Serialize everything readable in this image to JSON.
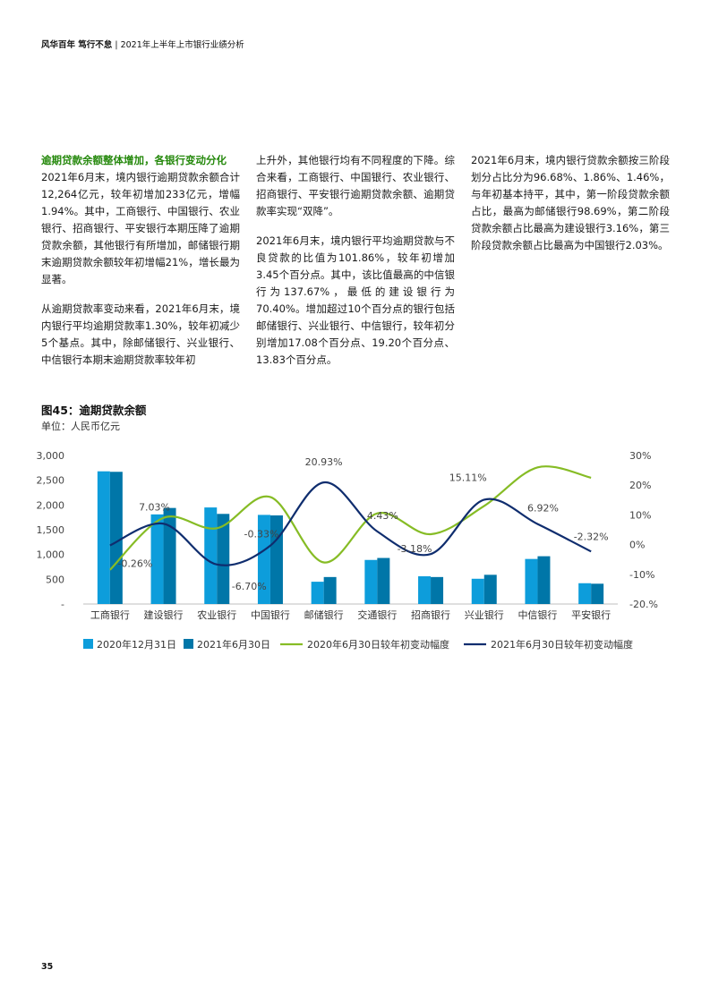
{
  "header": {
    "brand": "风华百年 笃行不怠",
    "separator": "|",
    "report_title": "2021年上半年上市银行业绩分析"
  },
  "column1": {
    "heading": "逾期贷款余额整体增加，各银行变动分化",
    "para1": "2021年6月末，境内银行逾期贷款余额合计12,264亿元，较年初增加233亿元，增幅1.94%。其中，工商银行、中国银行、农业银行、招商银行、平安银行本期压降了逾期贷款余额，其他银行有所增加，邮储银行期末逾期贷款余额较年初增幅21%，增长最为显著。",
    "para2": "从逾期贷款率变动来看，2021年6月末，境内银行平均逾期贷款率1.30%，较年初减少5个基点。其中，除邮储银行、兴业银行、中信银行本期末逾期贷款率较年初"
  },
  "column2": {
    "para1": "上升外，其他银行均有不同程度的下降。综合来看，工商银行、中国银行、农业银行、招商银行、平安银行逾期贷款余额、逾期贷款率实现“双降”。",
    "para2": "2021年6月末，境内银行平均逾期贷款与不良贷款的比值为101.86%，较年初增加3.45个百分点。其中，该比值最高的中信银行为137.67%，最低的建设银行为70.40%。增加超过10个百分点的银行包括邮储银行、兴业银行、中信银行，较年初分别增加17.08个百分点、19.20个百分点、13.83个百分点。"
  },
  "column3": {
    "para1": "2021年6月末，境内银行贷款余额按三阶段划分占比分为96.68%、1.86%、1.46%，与年初基本持平，其中，第一阶段贷款余额占比，最高为邮储银行98.69%，第二阶段贷款余额占比最高为建设银行3.16%，第三阶段贷款余额占比最高为中国银行2.03%。"
  },
  "figure": {
    "title": "图45：逾期贷款余额",
    "unit": "单位：人民币亿元"
  },
  "page_number": "35",
  "colors": {
    "bar_2020": "#0d9ddb",
    "bar_2021": "#0076a8",
    "line_2020": "#86bc25",
    "line_2021": "#0f2d6e",
    "heading": "#26890d"
  },
  "chart_data": {
    "type": "bar",
    "categories": [
      "工商银行",
      "建设银行",
      "农业银行",
      "中国银行",
      "邮储银行",
      "交通银行",
      "招商银行",
      "兴业银行",
      "中信银行",
      "平安银行"
    ],
    "series": [
      {
        "name": "2020年12月31日",
        "axis": "left",
        "values": [
          2680,
          1810,
          1950,
          1800,
          450,
          890,
          560,
          510,
          910,
          420
        ]
      },
      {
        "name": "2021年6月30日",
        "axis": "left",
        "values": [
          2670,
          1940,
          1820,
          1790,
          545,
          930,
          545,
          590,
          965,
          410
        ]
      },
      {
        "name": "2020年6月30日较年初变动幅度",
        "axis": "right",
        "type": "line",
        "values": [
          -8.5,
          9.0,
          5.5,
          16.0,
          -6.0,
          10.5,
          3.5,
          13.0,
          26.0,
          22.5
        ]
      },
      {
        "name": "2021年6月30日较年初变动幅度",
        "axis": "right",
        "type": "line",
        "values": [
          -0.26,
          7.03,
          -6.7,
          -0.33,
          20.93,
          4.43,
          -3.18,
          15.11,
          6.92,
          -2.32
        ]
      }
    ],
    "data_labels": [
      "-0.26%",
      "7.03%",
      "-6.70%",
      "-0.33%",
      "20.93%",
      "4.43%",
      "-3.18%",
      "15.11%",
      "6.92%",
      "-2.32%"
    ],
    "left_axis": {
      "ylim": [
        0,
        3000
      ],
      "ticks": [
        "-",
        "500",
        "1,000",
        "1,500",
        "2,000",
        "2,500",
        "3,000"
      ]
    },
    "right_axis": {
      "ylim": [
        -20,
        30
      ],
      "ticks": [
        "-20.%",
        "-10%",
        "0%",
        "10%",
        "20%",
        "30%"
      ]
    },
    "legend": [
      "2020年12月31日",
      "2021年6月30日",
      "2020年6月30日较年初变动幅度",
      "2021年6月30日较年初变动幅度"
    ],
    "legend_position": "bottom",
    "grid": false
  }
}
